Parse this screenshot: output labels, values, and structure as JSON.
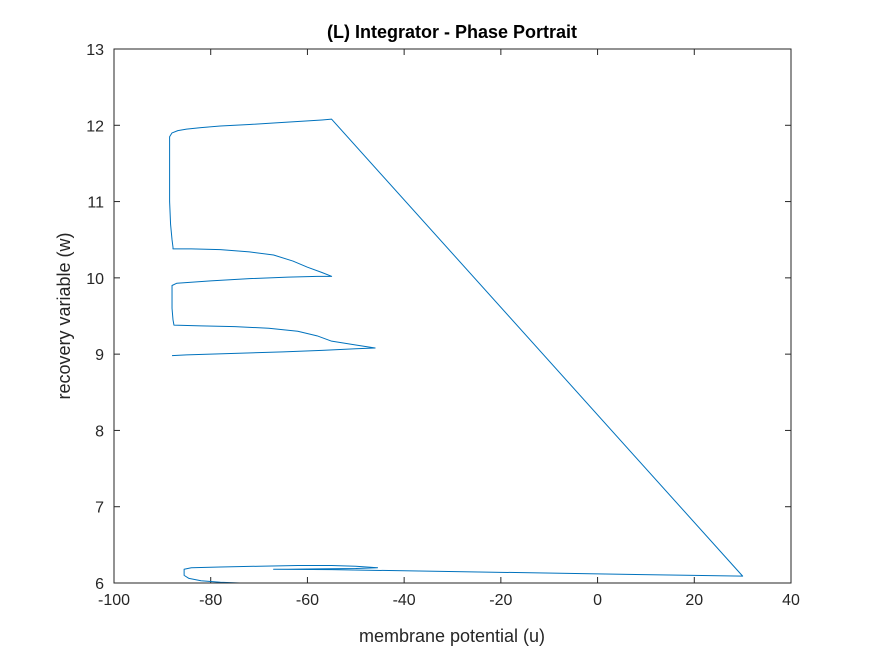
{
  "chart_data": {
    "type": "line",
    "title": "(L) Integrator - Phase Portrait",
    "xlabel": "membrane potential (u)",
    "ylabel": "recovery variable (w)",
    "xlim": [
      -100,
      40
    ],
    "ylim": [
      6,
      13
    ],
    "xticks": [
      -100,
      -80,
      -60,
      -40,
      -20,
      0,
      20,
      40
    ],
    "yticks": [
      6,
      7,
      8,
      9,
      10,
      11,
      12,
      13
    ],
    "xtick_labels": [
      "-100",
      "-80",
      "-60",
      "-40",
      "-20",
      "0",
      "20",
      "40"
    ],
    "ytick_labels": [
      "6",
      "7",
      "8",
      "9",
      "10",
      "11",
      "12",
      "13"
    ],
    "grid": false,
    "box": true,
    "line_color": "#0072bd",
    "series": [
      {
        "x": [
          -67,
          -70,
          -74,
          -78,
          -82,
          -84.5,
          -85.5,
          -85.5,
          -84,
          -78,
          -70,
          -62,
          -55,
          -50,
          -45.5,
          -50,
          -58,
          -64,
          -67,
          -55,
          -40,
          -20,
          0,
          20,
          30,
          -55,
          -57,
          -62,
          -67,
          -72,
          -78,
          -82,
          -85,
          -86.8,
          -88,
          -88.5,
          -88.5,
          -88.5,
          -88.3,
          -88,
          -87.8,
          -87.8,
          -87.8,
          -84,
          -78,
          -72,
          -67,
          -63,
          -60,
          -57,
          -55,
          -56,
          -58,
          -64,
          -72,
          -80,
          -87,
          -88,
          -88,
          -88,
          -87.8,
          -87.6,
          -82,
          -75,
          -68,
          -62,
          -58,
          -55,
          -50,
          -46,
          -50,
          -57,
          -65,
          -75,
          -85,
          -88
        ],
        "y": [
          6.0,
          6.0,
          6.0,
          6.01,
          6.03,
          6.06,
          6.1,
          6.18,
          6.2,
          6.21,
          6.22,
          6.23,
          6.23,
          6.22,
          6.2,
          6.19,
          6.185,
          6.18,
          6.18,
          6.175,
          6.16,
          6.14,
          6.12,
          6.1,
          6.09,
          12.08,
          12.07,
          12.05,
          12.03,
          12.01,
          11.99,
          11.97,
          11.95,
          11.93,
          11.9,
          11.85,
          11.5,
          11.0,
          10.7,
          10.5,
          10.4,
          10.39,
          10.38,
          10.38,
          10.37,
          10.34,
          10.3,
          10.22,
          10.14,
          10.07,
          10.02,
          10.02,
          10.02,
          10.01,
          9.99,
          9.96,
          9.93,
          9.9,
          9.8,
          9.6,
          9.45,
          9.38,
          9.37,
          9.36,
          9.34,
          9.3,
          9.24,
          9.17,
          9.12,
          9.08,
          9.07,
          9.05,
          9.03,
          9.01,
          8.99,
          8.98
        ]
      }
    ]
  }
}
